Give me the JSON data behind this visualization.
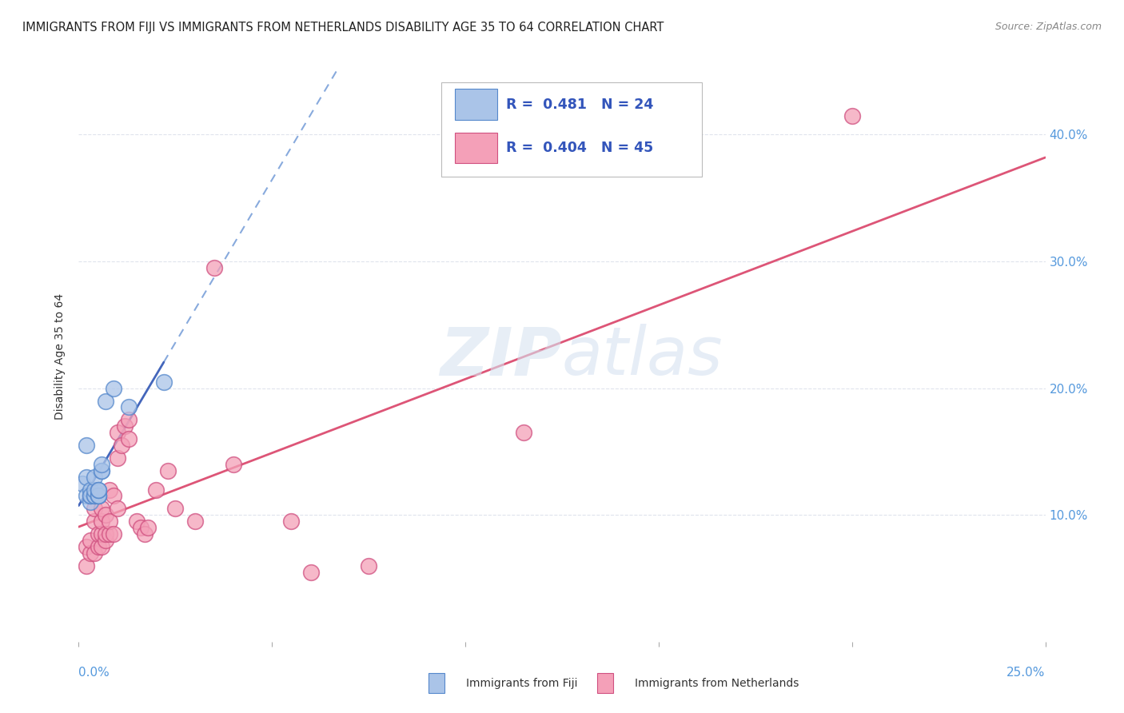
{
  "title": "IMMIGRANTS FROM FIJI VS IMMIGRANTS FROM NETHERLANDS DISABILITY AGE 35 TO 64 CORRELATION CHART",
  "source": "Source: ZipAtlas.com",
  "ylabel": "Disability Age 35 to 64",
  "xlim": [
    0.0,
    0.25
  ],
  "ylim": [
    0.0,
    0.45
  ],
  "watermark_zip": "ZIP",
  "watermark_atlas": "atlas",
  "fiji_R": "0.481",
  "fiji_N": "24",
  "netherlands_R": "0.404",
  "netherlands_N": "45",
  "fiji_color": "#aac4e8",
  "fiji_edge_color": "#5588cc",
  "netherlands_color": "#f4a0b8",
  "netherlands_edge_color": "#d05080",
  "fiji_trend_color": "#4466bb",
  "fiji_dash_color": "#88aadd",
  "netherlands_trend_color": "#dd5577",
  "grid_color": "#d8dee8",
  "ytick_color": "#5599dd",
  "xtick_color": "#5599dd",
  "legend_fiji_label": "Immigrants from Fiji",
  "legend_netherlands_label": "Immigrants from Netherlands",
  "fiji_x": [
    0.001,
    0.002,
    0.002,
    0.002,
    0.003,
    0.003,
    0.003,
    0.003,
    0.004,
    0.004,
    0.004,
    0.004,
    0.005,
    0.005,
    0.005,
    0.005,
    0.005,
    0.006,
    0.006,
    0.006,
    0.007,
    0.009,
    0.013,
    0.022
  ],
  "fiji_y": [
    0.125,
    0.115,
    0.13,
    0.155,
    0.11,
    0.115,
    0.12,
    0.115,
    0.115,
    0.115,
    0.12,
    0.13,
    0.115,
    0.115,
    0.115,
    0.12,
    0.12,
    0.135,
    0.135,
    0.14,
    0.19,
    0.2,
    0.185,
    0.205
  ],
  "nl_x": [
    0.002,
    0.002,
    0.003,
    0.003,
    0.003,
    0.004,
    0.004,
    0.004,
    0.005,
    0.005,
    0.005,
    0.006,
    0.006,
    0.006,
    0.006,
    0.007,
    0.007,
    0.007,
    0.008,
    0.008,
    0.008,
    0.009,
    0.009,
    0.01,
    0.01,
    0.01,
    0.011,
    0.012,
    0.013,
    0.013,
    0.015,
    0.016,
    0.017,
    0.018,
    0.02,
    0.023,
    0.025,
    0.03,
    0.035,
    0.04,
    0.055,
    0.06,
    0.075,
    0.115,
    0.2
  ],
  "nl_y": [
    0.06,
    0.075,
    0.07,
    0.08,
    0.115,
    0.07,
    0.095,
    0.105,
    0.075,
    0.085,
    0.115,
    0.075,
    0.085,
    0.095,
    0.105,
    0.08,
    0.085,
    0.1,
    0.085,
    0.095,
    0.12,
    0.085,
    0.115,
    0.105,
    0.145,
    0.165,
    0.155,
    0.17,
    0.16,
    0.175,
    0.095,
    0.09,
    0.085,
    0.09,
    0.12,
    0.135,
    0.105,
    0.095,
    0.295,
    0.14,
    0.095,
    0.055,
    0.06,
    0.165,
    0.415
  ],
  "background_color": "#ffffff",
  "title_fontsize": 10.5,
  "ylabel_fontsize": 10,
  "tick_fontsize": 11
}
